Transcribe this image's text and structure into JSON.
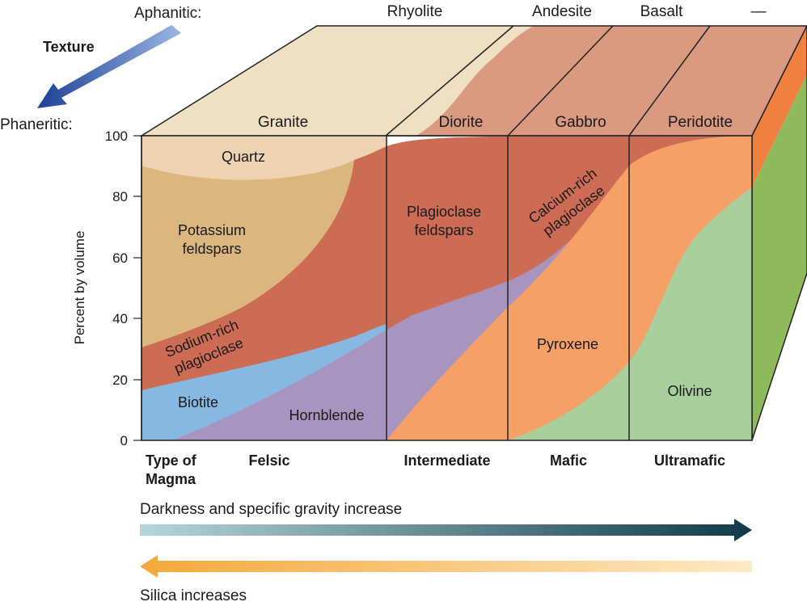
{
  "texture": {
    "label": "Texture",
    "aphanitic_label": "Aphanitic:",
    "phaneritic_label": "Phaneritic:"
  },
  "columns": [
    {
      "id": "felsic",
      "aphanitic_rock": "Rhyolite",
      "phaneritic_rock": "Granite",
      "magma_type": "Felsic"
    },
    {
      "id": "intermediate",
      "aphanitic_rock": "Andesite",
      "phaneritic_rock": "Diorite",
      "magma_type": "Intermediate"
    },
    {
      "id": "mafic",
      "aphanitic_rock": "Basalt",
      "phaneritic_rock": "Gabbro",
      "magma_type": "Mafic"
    },
    {
      "id": "ultramafic",
      "aphanitic_rock": "—",
      "phaneritic_rock": "Peridotite",
      "magma_type": "Ultramafic"
    }
  ],
  "magma_header": [
    "Type of",
    "Magma"
  ],
  "y_axis": {
    "label": "Percent by volume",
    "ticks": [
      "100",
      "80",
      "60",
      "40",
      "20",
      "0"
    ]
  },
  "minerals": [
    {
      "id": "quartz",
      "label": [
        "Quartz"
      ],
      "color": "#edd3b2"
    },
    {
      "id": "potassium-feldspars",
      "label": [
        "Potassium",
        "feldspars"
      ],
      "color": "#dcb67f"
    },
    {
      "id": "sodium-rich-plagioclase",
      "label": [
        "Sodium-rich",
        "plagioclase"
      ],
      "color": "#cc6c55"
    },
    {
      "id": "plagioclase-feldspars",
      "label": [
        "Plagioclase",
        "feldspars"
      ],
      "color": "#cc6c55"
    },
    {
      "id": "calcium-rich-plagioclase",
      "label": [
        "Calcium-rich",
        "plagioclase"
      ],
      "color": "#cc6c55"
    },
    {
      "id": "biotite",
      "label": [
        "Biotite"
      ],
      "color": "#86b8e2"
    },
    {
      "id": "hornblende",
      "label": [
        "Hornblende"
      ],
      "color": "#a895bf"
    },
    {
      "id": "pyroxene",
      "label": [
        "Pyroxene"
      ],
      "color": "#f4a066"
    },
    {
      "id": "olivine",
      "label": [
        "Olivine"
      ],
      "color": "#a9cf9c"
    }
  ],
  "arrows": {
    "darkness": {
      "label": "Darkness and specific gravity increase",
      "color_start": "#b5d5db",
      "color_end": "#0f3a48"
    },
    "silica": {
      "label": "Silica increases",
      "color_start": "#fde9c4",
      "color_end": "#f4a83c"
    }
  },
  "colors": {
    "top_face": "#efdfc3",
    "top_face_band": "#d99a80",
    "texture_arrow_start": "#9ab7e2",
    "texture_arrow_end": "#1c3f95",
    "side_orange": "#f08040",
    "side_green": "#8fba5c",
    "line": "#222222"
  }
}
